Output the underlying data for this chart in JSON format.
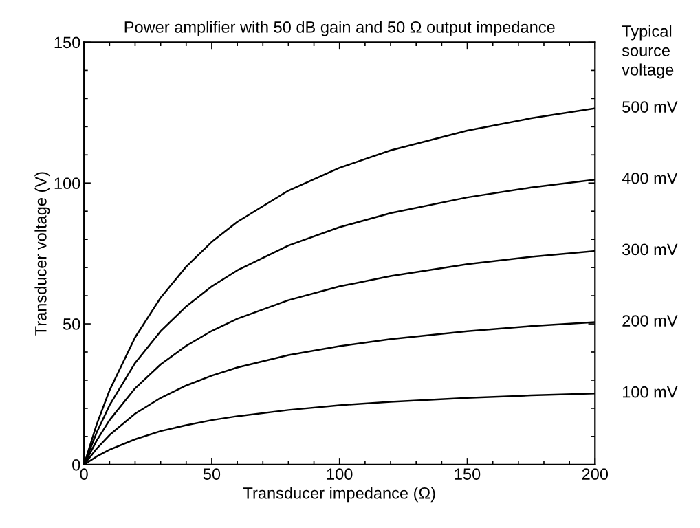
{
  "chart_data": {
    "type": "line",
    "title": "Power amplifier with 50 dB gain and 50 Ω output impedance",
    "xlabel": "Transducer impedance (Ω)",
    "ylabel": "Transducer voltage (V)",
    "legend_title": "Typical\nsource\nvoltage",
    "x": [
      0,
      5,
      10,
      20,
      30,
      40,
      50,
      60,
      80,
      100,
      120,
      150,
      175,
      200
    ],
    "series": [
      {
        "name": "500 mV",
        "color": "#000000",
        "values": [
          0,
          14.4,
          26.4,
          45.2,
          59.3,
          70.3,
          79.1,
          86.2,
          97.3,
          105.4,
          111.6,
          118.6,
          123.0,
          126.5
        ]
      },
      {
        "name": "400 mV",
        "color": "#000000",
        "values": [
          0,
          11.5,
          21.1,
          36.1,
          47.4,
          56.2,
          63.3,
          69.0,
          77.8,
          84.3,
          89.3,
          94.9,
          98.4,
          101.2
        ]
      },
      {
        "name": "300 mV",
        "color": "#000000",
        "values": [
          0,
          8.6,
          15.8,
          27.1,
          35.6,
          42.2,
          47.5,
          51.8,
          58.4,
          63.3,
          67.0,
          71.2,
          73.8,
          75.9
        ]
      },
      {
        "name": "200 mV",
        "color": "#000000",
        "values": [
          0,
          5.7,
          10.5,
          18.1,
          23.7,
          28.1,
          31.6,
          34.5,
          38.9,
          42.1,
          44.6,
          47.4,
          49.2,
          50.6
        ]
      },
      {
        "name": "100 mV",
        "color": "#000000",
        "values": [
          0,
          2.9,
          5.3,
          9.0,
          11.9,
          14.0,
          15.8,
          17.2,
          19.4,
          21.1,
          22.3,
          23.7,
          24.6,
          25.3
        ]
      }
    ],
    "xlim": [
      0,
      200
    ],
    "ylim": [
      0,
      150
    ],
    "xticks": [
      0,
      {
        "value": 10,
        "label": null
      },
      {
        "value": 20,
        "label": null
      },
      {
        "value": 30,
        "label": null
      },
      {
        "value": 40,
        "label": null
      },
      50,
      {
        "value": 60,
        "label": null
      },
      {
        "value": 70,
        "label": null
      },
      {
        "value": 80,
        "label": null
      },
      {
        "value": 90,
        "label": null
      },
      100,
      {
        "value": 110,
        "label": null
      },
      {
        "value": 120,
        "label": null
      },
      {
        "value": 130,
        "label": null
      },
      {
        "value": 140,
        "label": null
      },
      150,
      {
        "value": 160,
        "label": null
      },
      {
        "value": 170,
        "label": null
      },
      {
        "value": 180,
        "label": null
      },
      {
        "value": 190,
        "label": null
      },
      200
    ],
    "yticks": [
      0,
      {
        "value": 10,
        "label": null
      },
      {
        "value": 20,
        "label": null
      },
      {
        "value": 30,
        "label": null
      },
      {
        "value": 40,
        "label": null
      },
      50,
      {
        "value": 60,
        "label": null
      },
      {
        "value": 70,
        "label": null
      },
      {
        "value": 80,
        "label": null
      },
      {
        "value": 90,
        "label": null
      },
      100,
      {
        "value": 110,
        "label": null
      },
      {
        "value": 120,
        "label": null
      },
      {
        "value": 130,
        "label": null
      },
      {
        "value": 140,
        "label": null
      },
      150
    ],
    "grid": false,
    "legend": "right",
    "marker": "none",
    "line_style": "solid"
  }
}
